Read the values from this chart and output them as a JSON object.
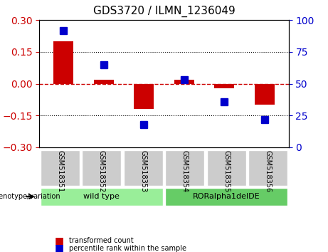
{
  "title": "GDS3720 / ILMN_1236049",
  "samples": [
    "GSM518351",
    "GSM518352",
    "GSM518353",
    "GSM518354",
    "GSM518355",
    "GSM518356"
  ],
  "bar_values": [
    0.2,
    0.02,
    -0.12,
    0.02,
    -0.02,
    -0.1
  ],
  "dot_values": [
    92,
    65,
    18,
    53,
    36,
    22
  ],
  "bar_color": "#cc0000",
  "dot_color": "#0000cc",
  "ylim_left": [
    -0.3,
    0.3
  ],
  "ylim_right": [
    0,
    100
  ],
  "yticks_left": [
    -0.3,
    -0.15,
    0,
    0.15,
    0.3
  ],
  "yticks_right": [
    0,
    25,
    50,
    75,
    100
  ],
  "hline_color": "#cc0000",
  "grid_color": "black",
  "groups": [
    {
      "label": "wild type",
      "samples": [
        "GSM518351",
        "GSM518352",
        "GSM518353"
      ],
      "color": "#99ee99"
    },
    {
      "label": "RORalpha1delDE",
      "samples": [
        "GSM518354",
        "GSM518355",
        "GSM518356"
      ],
      "color": "#66cc66"
    }
  ],
  "group_label": "genotype/variation",
  "legend_bar": "transformed count",
  "legend_dot": "percentile rank within the sample",
  "bar_width": 0.5,
  "background_color": "#ffffff",
  "plot_bg": "#ffffff",
  "tick_color_left": "#cc0000",
  "tick_color_right": "#0000cc"
}
